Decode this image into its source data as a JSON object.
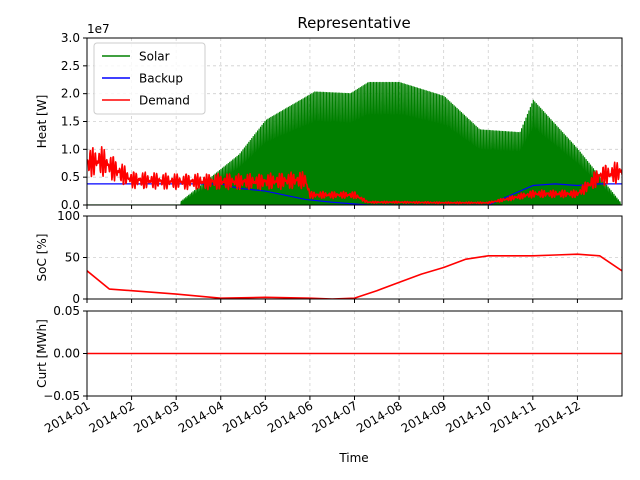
{
  "figure": {
    "title": "Representative",
    "xlabel": "Time"
  },
  "chart_data": [
    {
      "id": "heat",
      "type": "line",
      "title": "Representative",
      "ylabel": "Heat [W]",
      "offset_text": "1e7",
      "ylim": [
        0,
        3.0
      ],
      "yticks": [
        0.0,
        0.5,
        1.0,
        1.5,
        2.0,
        2.5,
        3.0
      ],
      "ytick_labels": [
        "0.0",
        "0.5",
        "1.0",
        "1.5",
        "2.0",
        "2.5",
        "3.0"
      ],
      "x_month_range": [
        0,
        12
      ],
      "legend": {
        "placement": "upper-left",
        "entries": [
          "Solar",
          "Backup",
          "Demand"
        ]
      },
      "series": [
        {
          "name": "Solar",
          "color": "#008000",
          "note": "daily solar spikes (x1e7 W); value = per-month spike height",
          "x": [
            0,
            1,
            2,
            3.4,
            4.0,
            5.1,
            5.9,
            6.3,
            7.0,
            8.0,
            8.8,
            9.7,
            10.0,
            11.0,
            12.0
          ],
          "values": [
            0,
            0,
            0,
            0.9,
            1.52,
            2.03,
            2.0,
            2.2,
            2.2,
            1.95,
            1.35,
            1.3,
            1.88,
            1.0,
            0
          ]
        },
        {
          "name": "Backup",
          "color": "#0000ff",
          "x": [
            0,
            1,
            2,
            3.0,
            3.4,
            4.0,
            4.9,
            5.5,
            6.3,
            7,
            8,
            9,
            10.0,
            10.5,
            11.0,
            11.5,
            12
          ],
          "values": [
            0.38,
            0.38,
            0.38,
            0.38,
            0.3,
            0.25,
            0.1,
            0.05,
            0,
            0,
            0,
            0,
            0.35,
            0.38,
            0.35,
            0.38,
            0.38
          ]
        },
        {
          "name": "Demand",
          "color": "#ff0000",
          "x": [
            0,
            0.3,
            0.6,
            1.0,
            2.0,
            3.0,
            4.0,
            4.9,
            5.0,
            6.0,
            6.3,
            7.0,
            8.0,
            9.0,
            10.0,
            11.0,
            11.5,
            12.0
          ],
          "values": [
            0.75,
            0.8,
            0.65,
            0.45,
            0.42,
            0.42,
            0.42,
            0.45,
            0.18,
            0.18,
            0.05,
            0.05,
            0.04,
            0.04,
            0.2,
            0.2,
            0.52,
            0.6
          ]
        }
      ]
    },
    {
      "id": "soc",
      "type": "line",
      "ylabel": "SoC [%]",
      "ylim": [
        0,
        100
      ],
      "yticks": [
        0,
        50,
        100
      ],
      "ytick_labels": [
        "0",
        "50",
        "100"
      ],
      "x_month_range": [
        0,
        12
      ],
      "series": [
        {
          "name": "SoC",
          "color": "#ff0000",
          "x": [
            0,
            0.5,
            1.0,
            2.0,
            3.0,
            4.0,
            5.0,
            5.5,
            6.0,
            6.5,
            7.0,
            7.5,
            8.0,
            8.5,
            9.0,
            9.5,
            10.0,
            10.5,
            11.0,
            11.5,
            12.0
          ],
          "values": [
            34,
            12,
            10,
            6,
            1,
            2,
            1,
            0,
            1,
            10,
            20,
            30,
            38,
            48,
            52,
            52,
            52,
            53,
            54,
            52,
            34
          ]
        }
      ]
    },
    {
      "id": "curt",
      "type": "line",
      "ylabel": "Curt [MWh]",
      "ylim": [
        -0.05,
        0.05
      ],
      "yticks": [
        -0.05,
        0.0,
        0.05
      ],
      "ytick_labels": [
        "−0.05",
        "0.00",
        "0.05"
      ],
      "x_month_range": [
        0,
        12
      ],
      "series": [
        {
          "name": "Curt",
          "color": "#ff0000",
          "x": [
            0,
            12
          ],
          "values": [
            0,
            0
          ]
        }
      ]
    }
  ],
  "x_axis": {
    "tick_labels": [
      "2014-01",
      "2014-02",
      "2014-03",
      "2014-04",
      "2014-05",
      "2014-06",
      "2014-07",
      "2014-08",
      "2014-09",
      "2014-10",
      "2014-11",
      "2014-12"
    ],
    "tick_months": [
      0,
      1,
      2,
      3,
      4,
      5,
      6,
      7,
      8,
      9,
      10,
      11
    ]
  }
}
